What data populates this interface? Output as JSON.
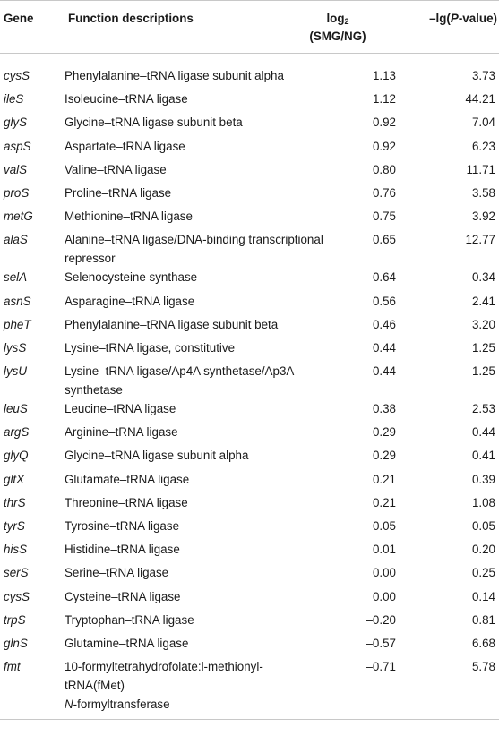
{
  "header": {
    "gene": "Gene",
    "func": "Function descriptions",
    "log_line1": "log",
    "log_sub": "2",
    "log_line2": "(SMG/NG)",
    "p_prefix": "–lg(",
    "p_italic": "P",
    "p_suffix": "-value)"
  },
  "rows": [
    {
      "gene": "cysS",
      "func": "Phenylalanine–tRNA ligase subunit alpha",
      "log": "1.13",
      "p": "3.73"
    },
    {
      "gene": "ileS",
      "func": "Isoleucine–tRNA ligase",
      "log": "1.12",
      "p": "44.21"
    },
    {
      "gene": "glyS",
      "func": "Glycine–tRNA ligase subunit beta",
      "log": "0.92",
      "p": "7.04"
    },
    {
      "gene": "aspS",
      "func": "Aspartate–tRNA ligase",
      "log": "0.92",
      "p": "6.23"
    },
    {
      "gene": "valS",
      "func": "Valine–tRNA ligase",
      "log": "0.80",
      "p": "11.71"
    },
    {
      "gene": "proS",
      "func": "Proline–tRNA ligase",
      "log": "0.76",
      "p": "3.58"
    },
    {
      "gene": "metG",
      "func": "Methionine–tRNA ligase",
      "log": "0.75",
      "p": "3.92"
    },
    {
      "gene": "alaS",
      "func": "Alanine–tRNA ligase/DNA-binding transcriptional repressor",
      "log": "0.65",
      "p": "12.77"
    },
    {
      "gene": "selA",
      "func": "Selenocysteine synthase",
      "log": "0.64",
      "p": "0.34"
    },
    {
      "gene": "asnS",
      "func": "Asparagine–tRNA ligase",
      "log": "0.56",
      "p": "2.41"
    },
    {
      "gene": "pheT",
      "func": "Phenylalanine–tRNA ligase subunit beta",
      "log": "0.46",
      "p": "3.20"
    },
    {
      "gene": "lysS",
      "func": "Lysine–tRNA ligase, constitutive",
      "log": "0.44",
      "p": "1.25"
    },
    {
      "gene": "lysU",
      "func": "Lysine–tRNA ligase/Ap4A synthetase/Ap3A synthetase",
      "log": "0.44",
      "p": "1.25"
    },
    {
      "gene": "leuS",
      "func": "Leucine–tRNA ligase",
      "log": "0.38",
      "p": "2.53"
    },
    {
      "gene": "argS",
      "func": "Arginine–tRNA ligase",
      "log": "0.29",
      "p": "0.44"
    },
    {
      "gene": "glyQ",
      "func": "Glycine–tRNA ligase subunit alpha",
      "log": "0.29",
      "p": "0.41"
    },
    {
      "gene": "gltX",
      "func": "Glutamate–tRNA ligase",
      "log": "0.21",
      "p": "0.39"
    },
    {
      "gene": "thrS",
      "func": "Threonine–tRNA ligase",
      "log": "0.21",
      "p": "1.08"
    },
    {
      "gene": "tyrS",
      "func": "Tyrosine–tRNA ligase",
      "log": "0.05",
      "p": "0.05"
    },
    {
      "gene": "hisS",
      "func": "Histidine–tRNA ligase",
      "log": "0.01",
      "p": "0.20"
    },
    {
      "gene": "serS",
      "func": "Serine–tRNA ligase",
      "log": "0.00",
      "p": "0.25"
    },
    {
      "gene": "cysS",
      "func": "Cysteine–tRNA ligase",
      "log": "0.00",
      "p": "0.14"
    },
    {
      "gene": "trpS",
      "func": "Tryptophan–tRNA ligase",
      "log": "–0.20",
      "p": "0.81"
    },
    {
      "gene": "glnS",
      "func": "Glutamine–tRNA ligase",
      "log": "–0.57",
      "p": "6.68"
    },
    {
      "gene": "fmt",
      "func_lines": [
        "10-formyltetrahydrofolate:l-methionyl-",
        "tRNA(fMet)"
      ],
      "func_italic_prefix": "N",
      "func_tail": "-formyltransferase",
      "log": "–0.71",
      "p": "5.78"
    }
  ]
}
